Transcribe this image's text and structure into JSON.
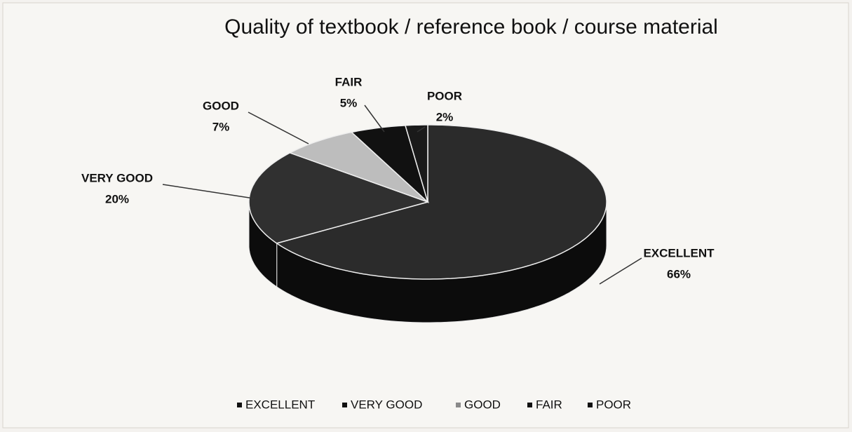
{
  "chart_data": {
    "type": "pie3d",
    "title": "Quality of textbook / reference book / course material",
    "categories": [
      "EXCELLENT",
      "VERY GOOD",
      "GOOD",
      "FAIR",
      "POOR"
    ],
    "values": [
      66,
      20,
      7,
      5,
      2
    ],
    "value_labels": [
      "66%",
      "20%",
      "7%",
      "5%",
      "2%"
    ],
    "colors": [
      "#2b2b2b",
      "#303030",
      "#bdbdbd",
      "#111111",
      "#1a1a1a"
    ],
    "legend": "bottom"
  }
}
